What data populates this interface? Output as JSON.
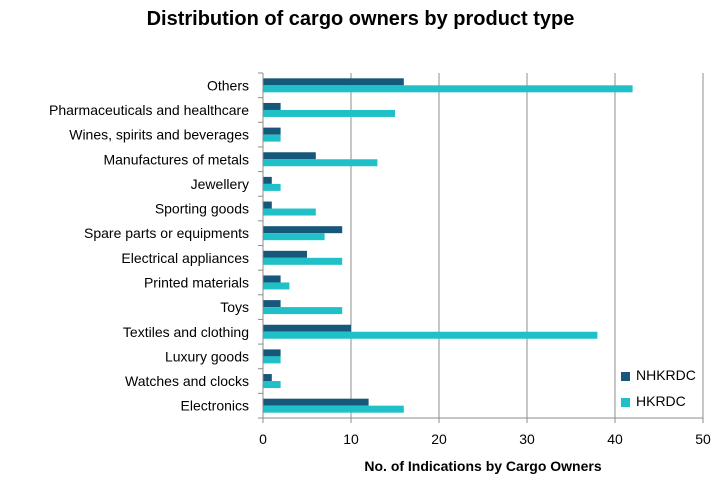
{
  "chart_data": {
    "type": "bar",
    "orientation": "horizontal",
    "title": "Distribution of cargo owners by product type",
    "xlabel": "No. of Indications by Cargo Owners",
    "ylabel": "",
    "xlim": [
      0,
      50
    ],
    "x_ticks": [
      0,
      10,
      20,
      30,
      40,
      50
    ],
    "grid": "vertical",
    "legend_position": "bottom-right",
    "categories": [
      "Others",
      "Pharmaceuticals and healthcare",
      "Wines, spirits and beverages",
      "Manufactures of metals",
      "Jewellery",
      "Sporting goods",
      "Spare parts or equipments",
      "Electrical appliances",
      "Printed materials",
      "Toys",
      "Textiles and clothing",
      "Luxury goods",
      "Watches and clocks",
      "Electronics"
    ],
    "series": [
      {
        "name": "NHKRDC",
        "color": "#17587a",
        "values": [
          16,
          2,
          2,
          6,
          1,
          1,
          9,
          5,
          2,
          2,
          10,
          2,
          1,
          12
        ]
      },
      {
        "name": "HKRDC",
        "color": "#20c0c8",
        "values": [
          42,
          15,
          2,
          13,
          2,
          6,
          7,
          9,
          3,
          9,
          38,
          2,
          2,
          16
        ]
      }
    ]
  }
}
